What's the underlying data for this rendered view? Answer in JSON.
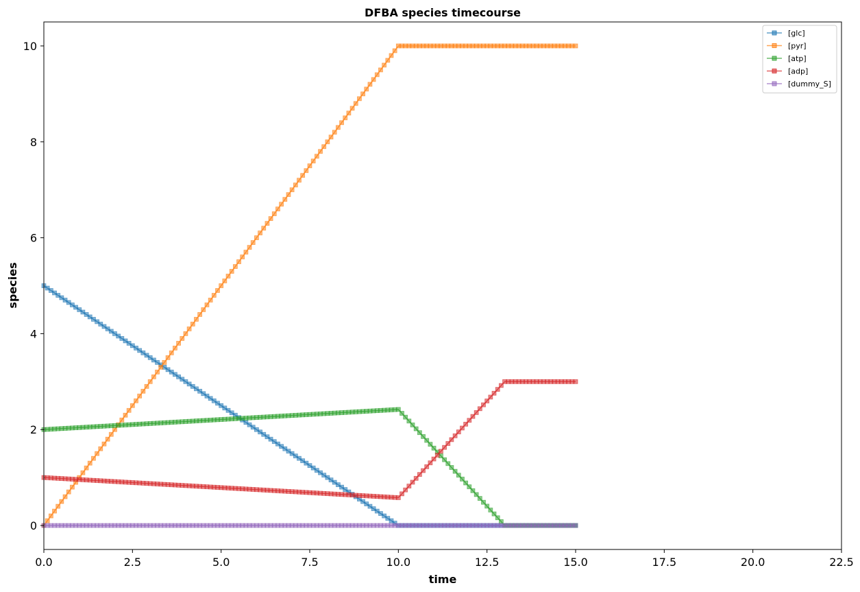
{
  "chart_data": {
    "type": "line",
    "title": "DFBA species timecourse",
    "xlabel": "time",
    "ylabel": "species",
    "xlim": [
      0,
      22.5
    ],
    "ylim": [
      -0.5,
      10.5
    ],
    "xticks": [
      0,
      2.5,
      5,
      7.5,
      10,
      12.5,
      15,
      17.5,
      20,
      22.5
    ],
    "xtick_labels": [
      "0.0",
      "2.5",
      "5.0",
      "7.5",
      "10.0",
      "12.5",
      "15.0",
      "17.5",
      "20.0",
      "22.5"
    ],
    "yticks": [
      0,
      2,
      4,
      6,
      8,
      10
    ],
    "ytick_labels": [
      "0",
      "2",
      "4",
      "6",
      "8",
      "10"
    ],
    "grid": false,
    "legend_position": "top-right",
    "marker": "square",
    "series": [
      {
        "name": "[glc]",
        "color": "#1f77b4",
        "x": [
          0,
          10,
          15
        ],
        "y": [
          5,
          0,
          0
        ]
      },
      {
        "name": "[pyr]",
        "color": "#ff7f0e",
        "x": [
          0,
          10,
          15
        ],
        "y": [
          0,
          10,
          10
        ]
      },
      {
        "name": "[atp]",
        "color": "#2ca02c",
        "x": [
          0,
          10,
          13,
          15
        ],
        "y": [
          2,
          2.42,
          0,
          0
        ]
      },
      {
        "name": "[adp]",
        "color": "#d62728",
        "x": [
          0,
          10,
          13,
          15
        ],
        "y": [
          1,
          0.58,
          3,
          3
        ]
      },
      {
        "name": "[dummy_S]",
        "color": "#9467bd",
        "x": [
          0,
          15
        ],
        "y": [
          0,
          0
        ]
      }
    ]
  }
}
